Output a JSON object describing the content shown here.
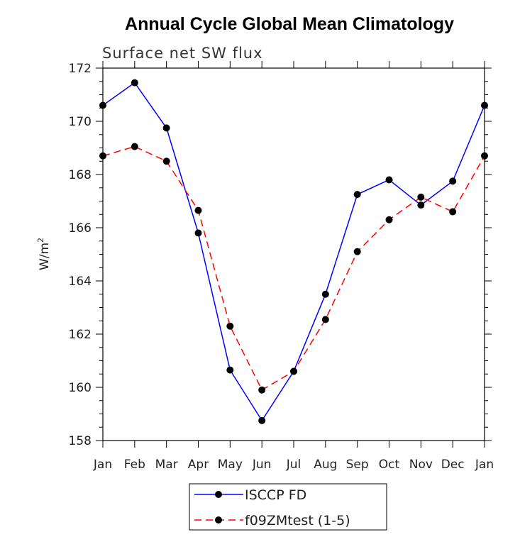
{
  "chart_data": {
    "type": "line",
    "title": "Annual Cycle Global Mean Climatology",
    "subtitle": "Surface net SW flux",
    "xlabel": "",
    "ylabel": "W/m",
    "ylabel_superscript": "2",
    "categories": [
      "Jan",
      "Feb",
      "Mar",
      "Apr",
      "May",
      "Jun",
      "Jul",
      "Aug",
      "Sep",
      "Oct",
      "Nov",
      "Dec",
      "Jan"
    ],
    "ylim": [
      158,
      172
    ],
    "yticks": [
      "158",
      "160",
      "162",
      "164",
      "166",
      "168",
      "170",
      "172"
    ],
    "grid": false,
    "legend_position": "bottom-center",
    "series": [
      {
        "name": "ISCCP FD",
        "color": "#0000ff",
        "dash": "solid",
        "values": [
          170.6,
          171.45,
          169.75,
          165.8,
          160.65,
          158.75,
          160.6,
          163.5,
          167.25,
          167.8,
          166.85,
          167.75,
          170.6
        ]
      },
      {
        "name": "f09ZMtest (1-5)",
        "color": "#ff0000",
        "dash": "dashed",
        "values": [
          168.7,
          169.05,
          168.5,
          166.65,
          162.3,
          159.9,
          160.6,
          162.55,
          165.1,
          166.3,
          167.15,
          166.6,
          168.7
        ]
      }
    ]
  }
}
